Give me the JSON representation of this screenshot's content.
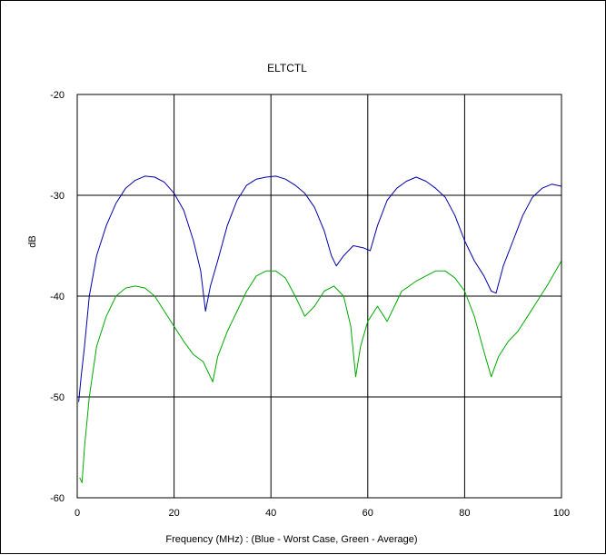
{
  "chart_data": {
    "type": "line",
    "title": "ELTCTL",
    "xlabel": "Frequency (MHz) : (Blue - Worst Case, Green - Average)",
    "ylabel": "dB",
    "xlim": [
      0,
      100
    ],
    "ylim": [
      -60,
      -20
    ],
    "x_ticks": [
      "0",
      "20",
      "40",
      "60",
      "80",
      "100"
    ],
    "y_ticks": [
      "-20",
      "-30",
      "-40",
      "-50",
      "-60"
    ],
    "x_tick_values": [
      0,
      20,
      40,
      60,
      80,
      100
    ],
    "y_tick_values": [
      -20,
      -30,
      -40,
      -50,
      -60
    ],
    "grid": true,
    "series": [
      {
        "color": "#0000aa",
        "x": [
          0.3,
          0.8,
          1.5,
          2.5,
          4,
          6,
          8,
          10,
          12,
          14,
          16,
          18,
          20,
          22,
          24,
          25.5,
          26.5,
          27.5,
          29,
          31,
          33,
          35,
          37,
          39,
          41,
          43,
          45,
          47,
          49,
          51,
          52.5,
          53.5,
          55,
          57,
          59,
          60.5,
          62,
          64,
          66,
          68,
          70,
          72,
          74,
          76,
          78,
          80,
          82,
          84,
          85.5,
          86.5,
          88,
          90,
          92,
          94,
          96,
          98,
          100
        ],
        "y": [
          -50.5,
          -48,
          -45,
          -40,
          -36,
          -33,
          -30.8,
          -29.3,
          -28.5,
          -28.1,
          -28.2,
          -28.7,
          -29.8,
          -31.5,
          -34.5,
          -37.5,
          -41.5,
          -39,
          -36.5,
          -33,
          -30.5,
          -29,
          -28.4,
          -28.2,
          -28.1,
          -28.4,
          -29,
          -29.8,
          -31.2,
          -33.5,
          -36,
          -37,
          -36,
          -35,
          -35.2,
          -35.5,
          -33,
          -30.5,
          -29.3,
          -28.6,
          -28.2,
          -28.6,
          -29.3,
          -30.2,
          -32,
          -34.5,
          -36.5,
          -38,
          -39.5,
          -39.7,
          -37,
          -34.5,
          -32,
          -30.2,
          -29.3,
          -28.9,
          -29.1
        ]
      },
      {
        "color": "#00aa00",
        "x": [
          0.5,
          1,
          1.5,
          2.5,
          4,
          6,
          8,
          10,
          12,
          14,
          16,
          18,
          20,
          22,
          24,
          26,
          27,
          28,
          29,
          31,
          33,
          35,
          37,
          39,
          41,
          43,
          45,
          47,
          49,
          51,
          53,
          55,
          56.5,
          57.5,
          58.5,
          60,
          62,
          64,
          66,
          67,
          68,
          70,
          72,
          74,
          76,
          78,
          80,
          82,
          84,
          85.5,
          87,
          89,
          91,
          93,
          95,
          97,
          100
        ],
        "y": [
          -58,
          -58.5,
          -55,
          -50,
          -45,
          -42,
          -40,
          -39.2,
          -39,
          -39.2,
          -40,
          -41.5,
          -43,
          -44.5,
          -45.8,
          -46.5,
          -47.5,
          -48.5,
          -46,
          -43.5,
          -41.5,
          -39.5,
          -38,
          -37.5,
          -37.5,
          -38.2,
          -40,
          -42,
          -41,
          -39.5,
          -39,
          -40,
          -43,
          -48,
          -45,
          -42.5,
          -41,
          -42.5,
          -40.5,
          -39.5,
          -39.2,
          -38.5,
          -38,
          -37.5,
          -37.5,
          -38.2,
          -39.5,
          -42,
          -45.5,
          -48,
          -46,
          -44.5,
          -43.5,
          -42,
          -40.5,
          -39,
          -36.5
        ]
      }
    ]
  }
}
